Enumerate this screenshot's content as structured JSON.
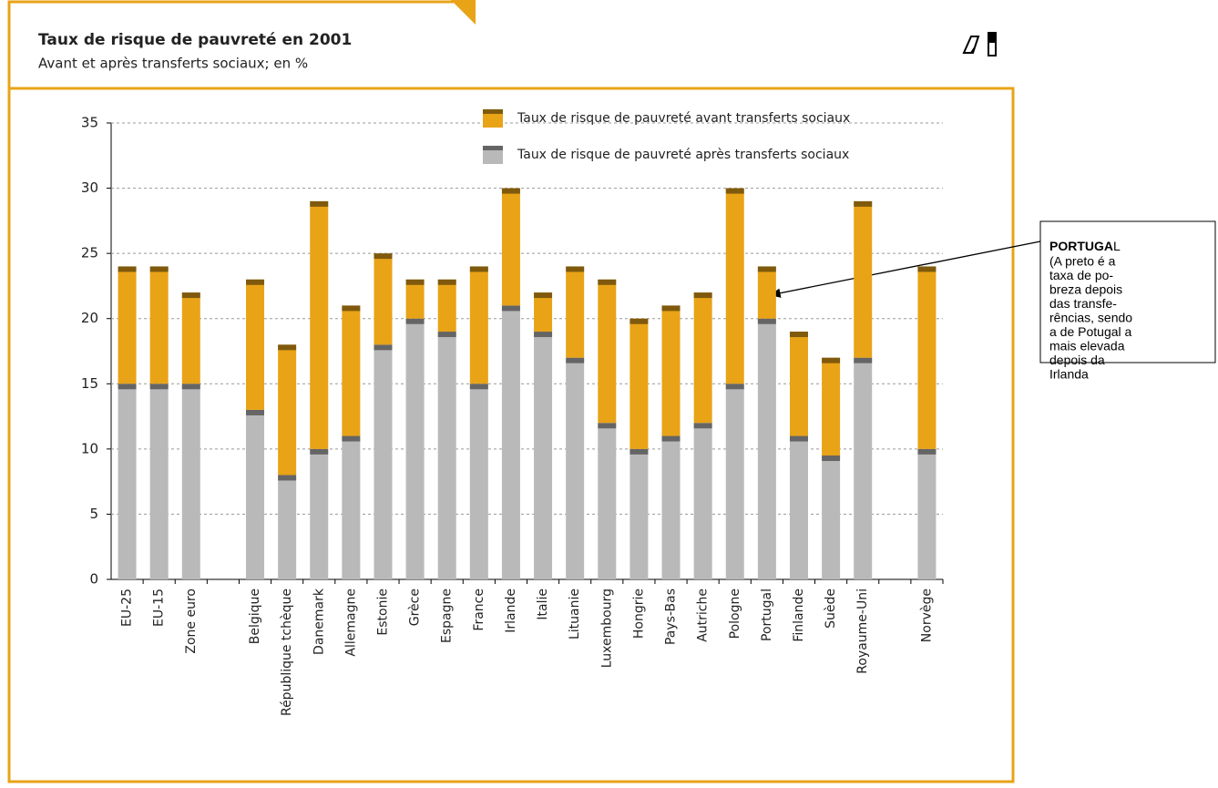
{
  "chart_data": {
    "type": "stacked_bar",
    "title": "Taux de risque de pauvreté en 2001",
    "subtitle": "Avant et après transferts sociaux; en %",
    "categories": [
      "EU-25",
      "EU-15",
      "Zone euro",
      null,
      "Belgique",
      "République tchèque",
      "Danemark",
      "Allemagne",
      "Estonie",
      "Grèce",
      "Espagne",
      "France",
      "Irlande",
      "Italie",
      "Lituanie",
      "Luxembourg",
      "Hongrie",
      "Pays-Bas",
      "Autriche",
      "Pologne",
      "Portugal",
      "Finlande",
      "Suède",
      "Royaume-Uni",
      null,
      "Norvège"
    ],
    "series": [
      {
        "name": "Taux de risque de pauvreté après transferts sociaux",
        "color": "#b9b9b9",
        "values": [
          15,
          15,
          15,
          null,
          13,
          8,
          10,
          11,
          18,
          20,
          19,
          15,
          21,
          19,
          17,
          12,
          10,
          11,
          12,
          15,
          20,
          11,
          9.5,
          17,
          null,
          10
        ]
      },
      {
        "name": "Taux de risque de pauvreté avant transferts sociaux",
        "color": "#e8a317",
        "values": [
          9,
          9,
          7,
          null,
          10,
          10,
          19,
          10,
          7,
          3,
          4,
          9,
          9,
          3,
          7,
          11,
          10,
          10,
          10,
          15,
          4,
          8,
          7.5,
          12,
          null,
          14
        ]
      }
    ],
    "ylim": [
      0,
      35
    ],
    "yticks": [
      0,
      5,
      10,
      15,
      20,
      25,
      30,
      35
    ],
    "grid": true,
    "annotation": {
      "title_bold": "PORTUGA",
      "title_rest": "L",
      "lines": [
        "(A preto é a",
        "taxa de po-",
        "breza depois",
        "das transfe-",
        "rências, sendo",
        "a de Potugal a",
        "mais elevada",
        "depois da",
        "Irlanda"
      ]
    }
  }
}
